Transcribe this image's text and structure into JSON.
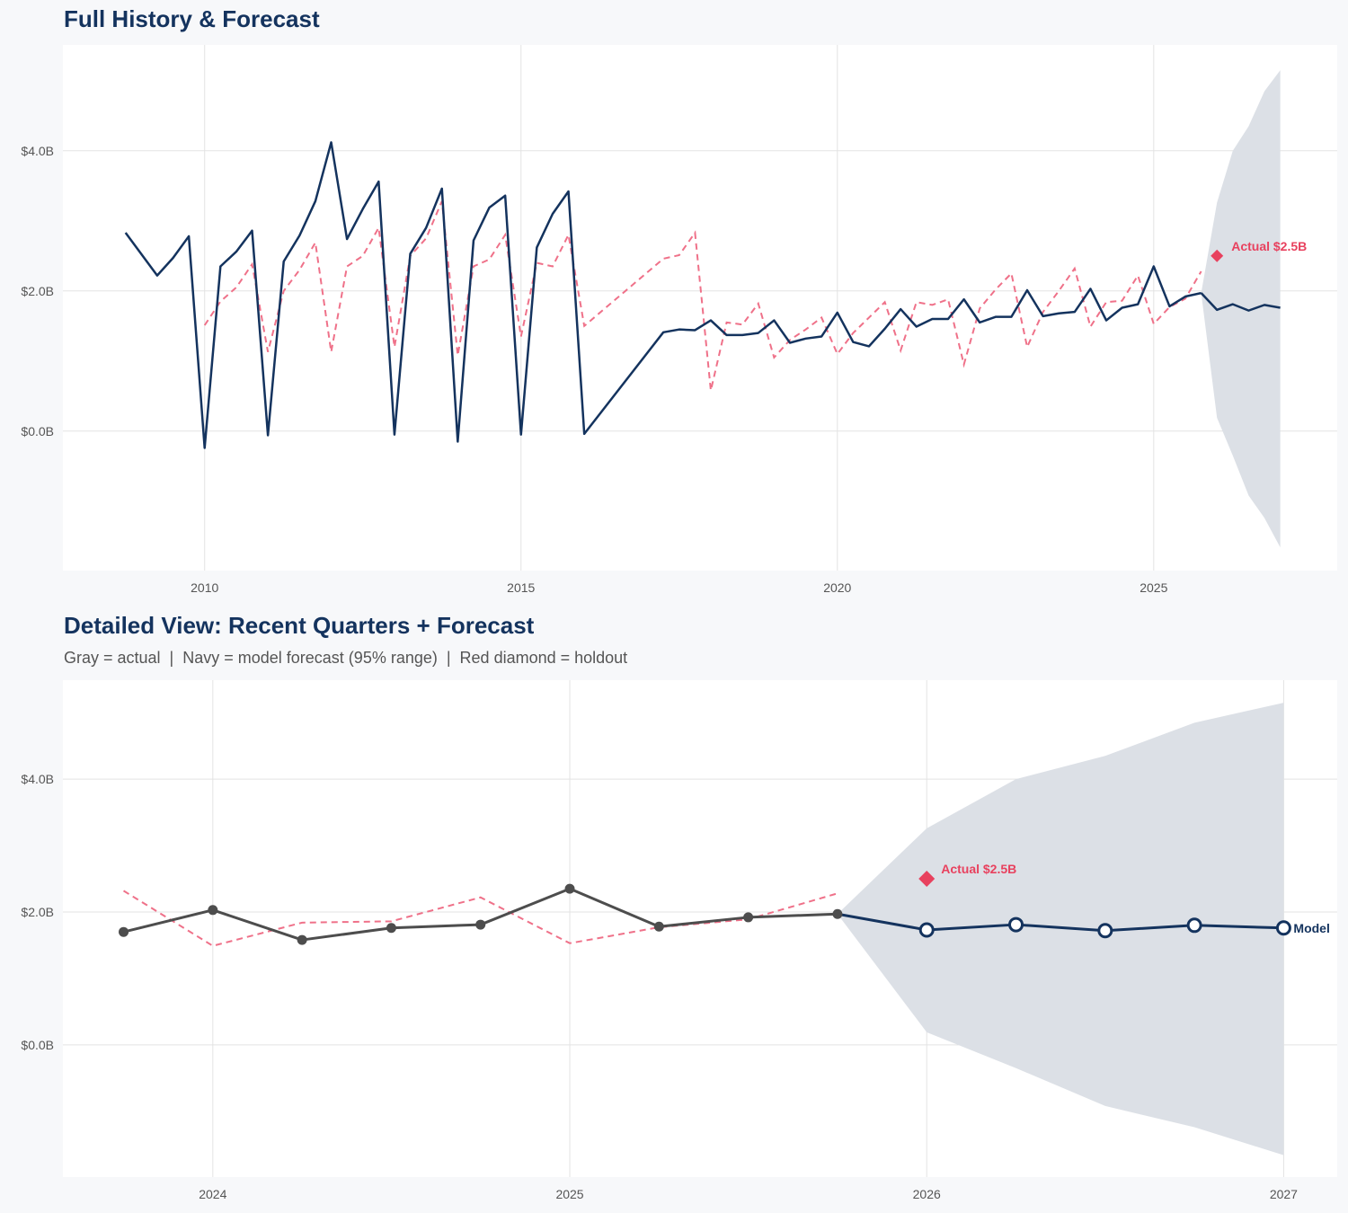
{
  "colors": {
    "navy": "#14335e",
    "gray": "#4d4d4d",
    "red": "#e8415e",
    "band": "#dce0e6",
    "grid": "#e3e3e3"
  },
  "chart_data": [
    {
      "type": "line",
      "title": "Full History & Forecast",
      "xlim": [
        2007.76,
        2027.9
      ],
      "ylim": [
        -1.99,
        5.51
      ],
      "x_ticks": [
        2010,
        2015,
        2020,
        2025
      ],
      "x_tick_labels": [
        "2010",
        "2015",
        "2020",
        "2025"
      ],
      "y_ticks": [
        0,
        2,
        4
      ],
      "y_tick_labels": [
        "$0.0B",
        "$2.0B",
        "$4.0B"
      ],
      "grid": true,
      "actual": {
        "color": "navy",
        "x": [
          2008.75,
          2009.25,
          2009.5,
          2009.75,
          2010.0,
          2010.25,
          2010.5,
          2010.75,
          2011.0,
          2011.25,
          2011.5,
          2011.75,
          2012.0,
          2012.25,
          2012.5,
          2012.75,
          2013.0,
          2013.25,
          2013.5,
          2013.75,
          2014.0,
          2014.25,
          2014.5,
          2014.75,
          2015.0,
          2015.25,
          2015.5,
          2015.75,
          2016.0,
          2017.25,
          2017.5,
          2017.75,
          2018.0,
          2018.25,
          2018.5,
          2018.75,
          2019.0,
          2019.25,
          2019.5,
          2019.75,
          2020.0,
          2020.25,
          2020.5,
          2020.75,
          2021.0,
          2021.25,
          2021.5,
          2021.75,
          2022.0,
          2022.25,
          2022.5,
          2022.75,
          2023.0,
          2023.25,
          2023.5,
          2023.75,
          2024.0,
          2024.25,
          2024.5,
          2024.75,
          2025.0,
          2025.25,
          2025.5,
          2025.75
        ],
        "values": [
          2.83,
          2.22,
          2.47,
          2.78,
          -0.24,
          2.35,
          2.56,
          2.86,
          -0.06,
          2.42,
          2.79,
          3.28,
          4.12,
          2.74,
          3.17,
          3.56,
          -0.05,
          2.53,
          2.9,
          3.46,
          -0.15,
          2.72,
          3.19,
          3.36,
          -0.05,
          2.62,
          3.1,
          3.42,
          -0.04,
          1.41,
          1.45,
          1.44,
          1.58,
          1.37,
          1.37,
          1.4,
          1.58,
          1.26,
          1.32,
          1.35,
          1.69,
          1.27,
          1.21,
          1.46,
          1.74,
          1.49,
          1.6,
          1.6,
          1.88,
          1.55,
          1.63,
          1.63,
          2.01,
          1.64,
          1.68,
          1.7,
          2.03,
          1.58,
          1.76,
          1.81,
          2.35,
          1.78,
          1.92,
          1.97
        ]
      },
      "dashed": {
        "color": "red",
        "x": [
          2010.0,
          2010.25,
          2010.5,
          2010.75,
          2011.0,
          2011.25,
          2011.5,
          2011.75,
          2012.0,
          2012.25,
          2012.5,
          2012.75,
          2013.0,
          2013.25,
          2013.5,
          2013.75,
          2014.0,
          2014.25,
          2014.5,
          2014.75,
          2015.0,
          2015.25,
          2015.5,
          2015.75,
          2016.0,
          2017.25,
          2017.5,
          2017.75,
          2018.0,
          2018.25,
          2018.5,
          2018.75,
          2019.0,
          2019.25,
          2019.5,
          2019.75,
          2020.0,
          2020.25,
          2020.5,
          2020.75,
          2021.0,
          2021.25,
          2021.5,
          2021.75,
          2022.0,
          2022.25,
          2022.5,
          2022.75,
          2023.0,
          2023.25,
          2023.5,
          2023.75,
          2024.0,
          2024.25,
          2024.5,
          2024.75,
          2025.0,
          2025.25,
          2025.5,
          2025.75
        ],
        "values": [
          1.51,
          1.85,
          2.05,
          2.38,
          1.13,
          2.0,
          2.3,
          2.69,
          1.13,
          2.35,
          2.5,
          2.9,
          1.2,
          2.5,
          2.75,
          3.28,
          1.08,
          2.35,
          2.45,
          2.8,
          1.35,
          2.4,
          2.35,
          2.8,
          1.5,
          2.46,
          2.51,
          2.83,
          0.58,
          1.55,
          1.52,
          1.82,
          1.05,
          1.3,
          1.45,
          1.62,
          1.1,
          1.4,
          1.62,
          1.84,
          1.15,
          1.84,
          1.8,
          1.88,
          0.95,
          1.75,
          2.02,
          2.25,
          1.2,
          1.7,
          2.0,
          2.32,
          1.49,
          1.84,
          1.86,
          2.22,
          1.53,
          1.77,
          1.89,
          2.28
        ]
      },
      "forecast": {
        "color": "navy",
        "x": [
          2025.75,
          2026.0,
          2026.25,
          2026.5,
          2026.75,
          2027.0
        ],
        "values": [
          1.97,
          1.73,
          1.81,
          1.72,
          1.8,
          1.76
        ],
        "lower": [
          1.97,
          0.19,
          -0.35,
          -0.92,
          -1.24,
          -1.66
        ],
        "upper": [
          1.97,
          3.26,
          4.0,
          4.35,
          4.85,
          5.15
        ]
      },
      "holdout": {
        "x": 2026.0,
        "value": 2.5,
        "label": "Actual $2.5B"
      }
    },
    {
      "type": "line",
      "title": "Detailed View: Recent Quarters + Forecast",
      "subtitle": "Gray = actual  |  Navy = model forecast (95% range)  |  Red diamond = holdout",
      "xlim": [
        2023.58,
        2027.15
      ],
      "ylim": [
        -1.99,
        5.49
      ],
      "x_ticks": [
        2024,
        2025,
        2026,
        2027
      ],
      "x_tick_labels": [
        "2024",
        "2025",
        "2026",
        "2027"
      ],
      "y_ticks": [
        0,
        2,
        4
      ],
      "y_tick_labels": [
        "$0.0B",
        "$2.0B",
        "$4.0B"
      ],
      "grid": true,
      "actual": {
        "color": "gray",
        "x": [
          2023.75,
          2024.0,
          2024.25,
          2024.5,
          2024.75,
          2025.0,
          2025.25,
          2025.5,
          2025.75
        ],
        "values": [
          1.7,
          2.03,
          1.58,
          1.76,
          1.81,
          2.35,
          1.78,
          1.92,
          1.97
        ]
      },
      "dashed": {
        "color": "red",
        "x": [
          2023.75,
          2024.0,
          2024.25,
          2024.5,
          2024.75,
          2025.0,
          2025.25,
          2025.5,
          2025.75
        ],
        "values": [
          2.32,
          1.49,
          1.84,
          1.86,
          2.22,
          1.53,
          1.77,
          1.89,
          2.28
        ]
      },
      "forecast": {
        "color": "navy",
        "x": [
          2025.75,
          2026.0,
          2026.25,
          2026.5,
          2026.75,
          2027.0
        ],
        "values": [
          1.97,
          1.73,
          1.81,
          1.72,
          1.8,
          1.76
        ],
        "lower": [
          1.97,
          0.19,
          -0.35,
          -0.92,
          -1.24,
          -1.66
        ],
        "upper": [
          1.97,
          3.26,
          4.0,
          4.35,
          4.85,
          5.15
        ],
        "end_label": "Model"
      },
      "holdout": {
        "x": 2026.0,
        "value": 2.5,
        "label": "Actual $2.5B"
      }
    }
  ]
}
